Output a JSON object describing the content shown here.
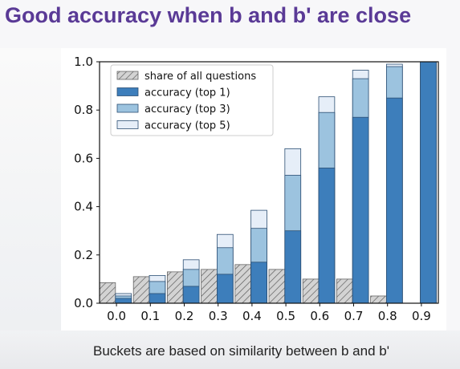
{
  "slide": {
    "title": "Good accuracy when b and b' are close",
    "footnote": "Buckets are based on similarity between b and b'"
  },
  "colors": {
    "title": "#5a3a96",
    "share_fill": "#d3d3d3",
    "top1": "#3d7ebb",
    "top3": "#9cc3df",
    "top5": "#e6eef8"
  },
  "chart_data": {
    "type": "bar",
    "categories": [
      "0.0",
      "0.1",
      "0.2",
      "0.3",
      "0.4",
      "0.5",
      "0.6",
      "0.7",
      "0.8",
      "0.9"
    ],
    "ylim": [
      0,
      1.0
    ],
    "yticks": [
      "0.0",
      "0.2",
      "0.4",
      "0.6",
      "0.8",
      "1.0"
    ],
    "grid": false,
    "legend_position": "top-left",
    "series": [
      {
        "name": "share of all questions",
        "style": "hatched",
        "values": [
          0.085,
          0.11,
          0.13,
          0.14,
          0.16,
          0.14,
          0.1,
          0.1,
          0.03,
          0.0
        ]
      },
      {
        "name": "accuracy (top 1)",
        "style": "solid",
        "values": [
          0.02,
          0.04,
          0.07,
          0.12,
          0.17,
          0.3,
          0.56,
          0.77,
          0.85,
          1.0
        ]
      },
      {
        "name": "accuracy (top 3)",
        "style": "solid",
        "values": [
          0.03,
          0.09,
          0.14,
          0.23,
          0.31,
          0.53,
          0.79,
          0.93,
          0.98,
          1.0
        ]
      },
      {
        "name": "accuracy (top 5)",
        "style": "solid",
        "values": [
          0.04,
          0.115,
          0.18,
          0.285,
          0.385,
          0.64,
          0.855,
          0.965,
          0.99,
          1.0
        ]
      }
    ]
  }
}
